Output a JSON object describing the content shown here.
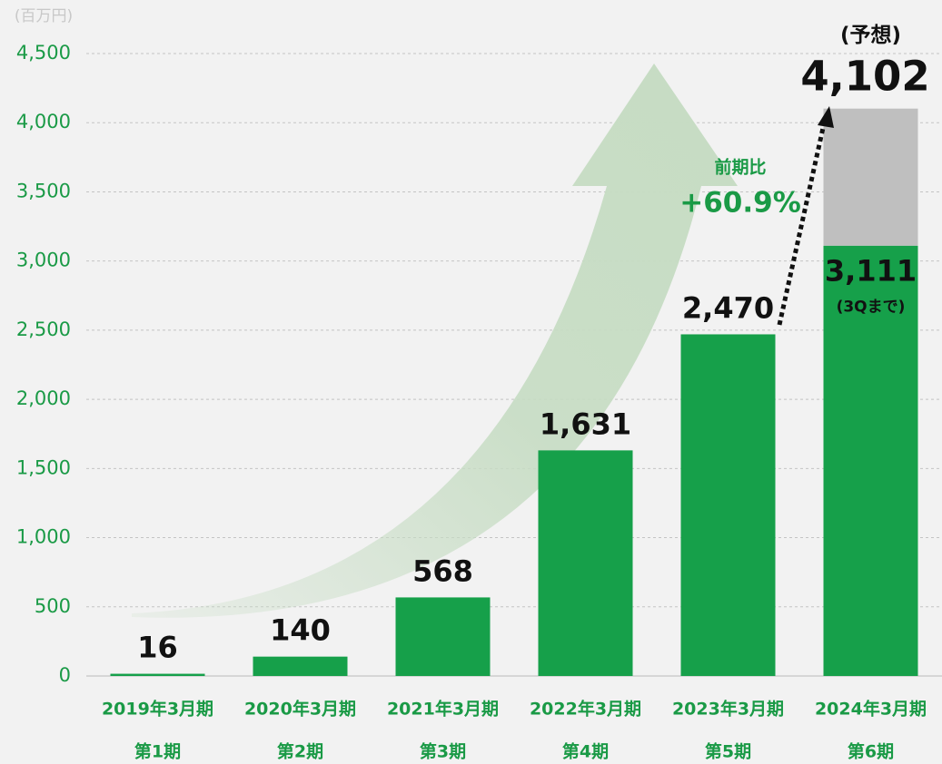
{
  "chart_data": {
    "type": "bar",
    "unit_label": "(百万円)",
    "categories": [
      "2019年3月期",
      "2020年3月期",
      "2021年3月期",
      "2022年3月期",
      "2023年3月期",
      "2024年3月期"
    ],
    "period_labels": [
      "第1期",
      "第2期",
      "第3期",
      "第4期",
      "第5期",
      "第6期"
    ],
    "values": [
      16,
      140,
      568,
      1631,
      2470,
      3111
    ],
    "value_labels": [
      "16",
      "140",
      "568",
      "1,631",
      "2,470",
      "3,111"
    ],
    "color": "#16a04a",
    "last_value_note": "(3Qまで)",
    "forecast": {
      "label": "(予想)",
      "value": 4102,
      "value_label": "4,102",
      "color": "#bfbfbf"
    },
    "annotation": {
      "label": "前期比",
      "value": "+60.9%"
    },
    "ylim": [
      0,
      4500
    ],
    "yticks": [
      0,
      500,
      {
        "value": 1000,
        "label": "1,000"
      },
      {
        "value": 1500,
        "label": "1,500"
      },
      {
        "value": 2000,
        "label": "2,000"
      },
      {
        "value": 2500,
        "label": "2,500"
      },
      {
        "value": 3000,
        "label": "3,000"
      },
      {
        "value": 3500,
        "label": "3,500"
      },
      {
        "value": 4000,
        "label": "4,000"
      },
      {
        "value": 4500,
        "label": "4,500"
      }
    ],
    "grid": true
  }
}
